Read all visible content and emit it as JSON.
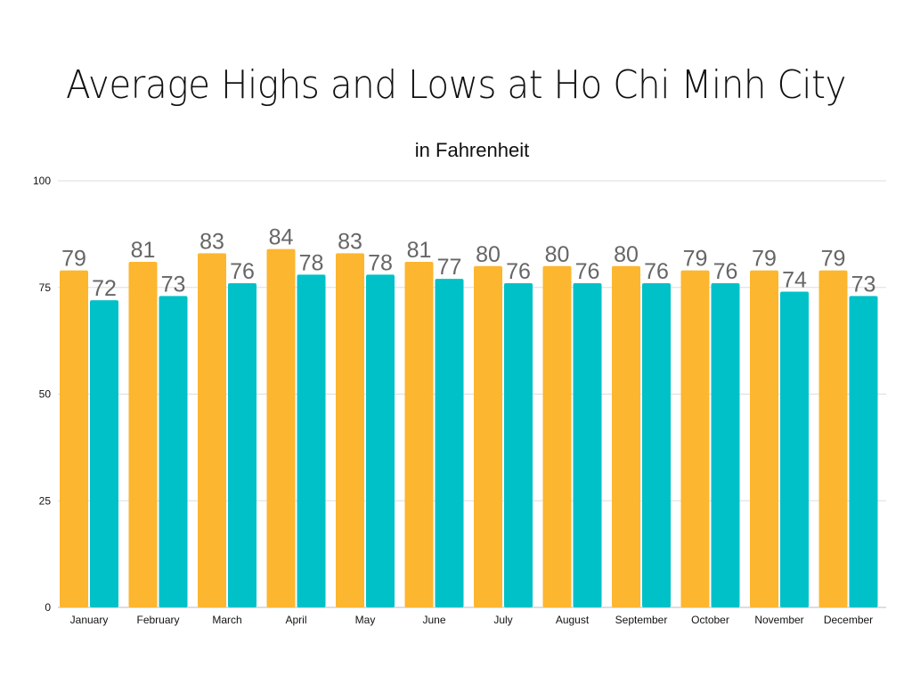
{
  "chart_data": {
    "type": "bar",
    "title": "Average Highs and Lows at Ho Chi Minh City",
    "subtitle": "in Fahrenheit",
    "xlabel": "",
    "ylabel": "",
    "ylim": [
      0,
      100
    ],
    "yticks": [
      0,
      25,
      50,
      75,
      100
    ],
    "grid": true,
    "legend": "none",
    "data_labels": true,
    "categories": [
      "January",
      "February",
      "March",
      "April",
      "May",
      "June",
      "July",
      "August",
      "September",
      "October",
      "November",
      "December"
    ],
    "series": [
      {
        "values": [
          79,
          81,
          83,
          84,
          83,
          81,
          80,
          80,
          80,
          79,
          79,
          79
        ],
        "color": "#FDB62F"
      },
      {
        "values": [
          72,
          73,
          76,
          78,
          78,
          77,
          76,
          76,
          76,
          76,
          74,
          73
        ],
        "color": "#00C1C8"
      }
    ]
  }
}
